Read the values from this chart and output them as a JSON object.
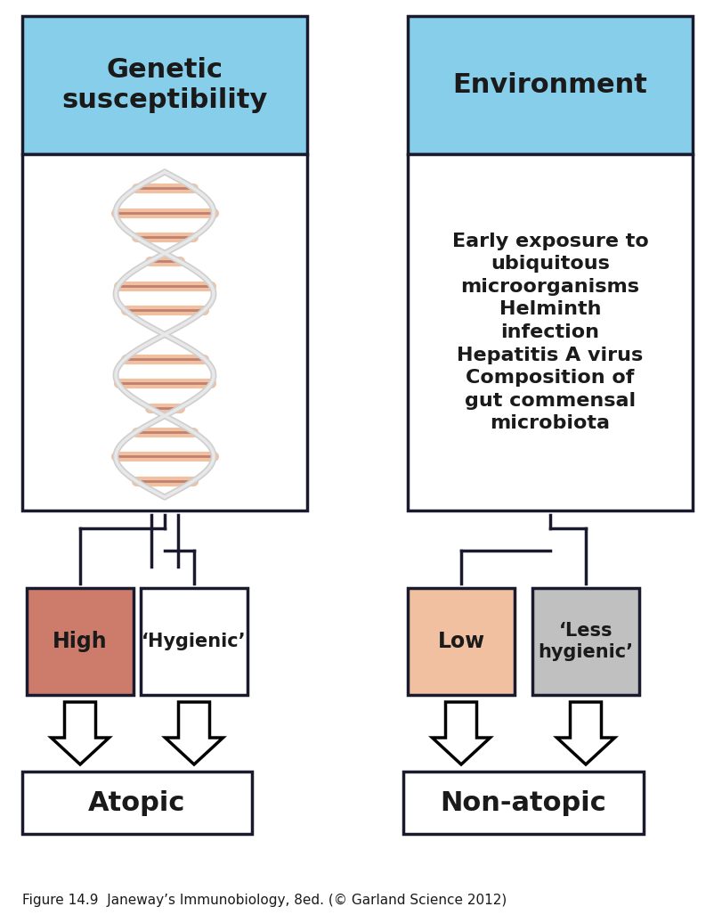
{
  "bg_color": "#ffffff",
  "box_border_color": "#1a1a2e",
  "text_color": "#1a1a1a",
  "blue_header_color": "#87ceeb",
  "high_box_color": "#cd7b6b",
  "hygienic_box_color": "#ffffff",
  "low_box_color": "#f0c0a0",
  "less_hygienic_box_color": "#c0c0c0",
  "atopic_box_color": "#ffffff",
  "nonatopic_box_color": "#ffffff",
  "dna_strand_color": "#f0c0a0",
  "genetic_title": "Genetic\nsusceptibility",
  "environment_title": "Environment",
  "env_text": "Early exposure to\nubiquitous\nmicroorganisms\nHelminth\ninfection\nHepatitis A virus\nComposition of\ngut commensal\nmicrobiota",
  "high_label": "High",
  "hygienic_label": "‘Hygienic’",
  "low_label": "Low",
  "less_hygienic_label": "‘Less\nhygienic’",
  "atopic_label": "Atopic",
  "nonatopic_label": "Non-atopic",
  "caption": "Figure 14.9  Janeway’s Immunobiology, 8ed. (© Garland Science 2012)"
}
